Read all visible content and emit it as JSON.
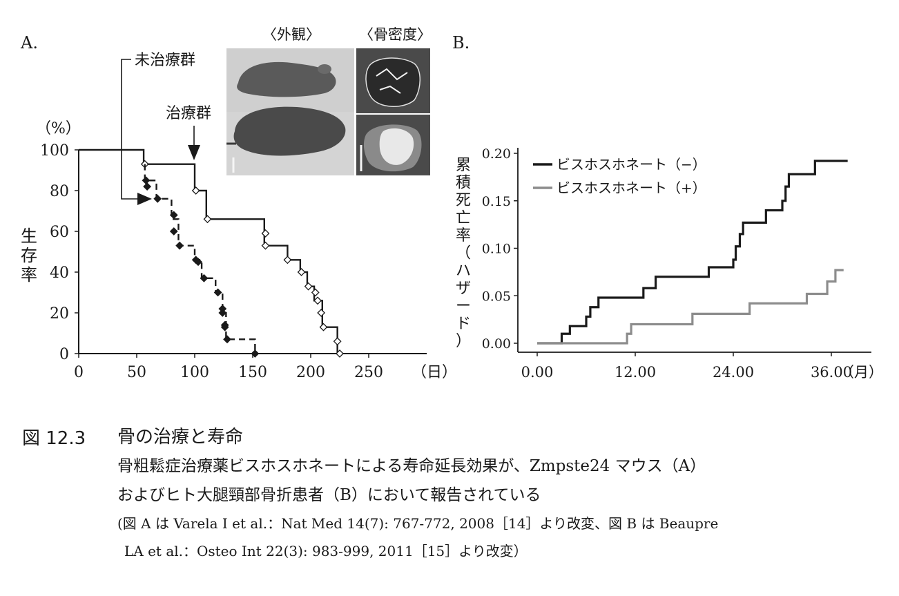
{
  "chart_data": [
    {
      "type": "line",
      "panel_label": "A.",
      "ylabel": "生存率",
      "y_unit": "（%）",
      "x_unit": "（日）",
      "xlim": [
        0,
        300
      ],
      "ylim": [
        0,
        100
      ],
      "x_ticks": [
        "0",
        "50",
        "100",
        "150",
        "200",
        "250"
      ],
      "y_ticks": [
        "0",
        "20",
        "40",
        "60",
        "80",
        "100"
      ],
      "annotations": {
        "untreated": "未治療群",
        "treated": "治療群"
      },
      "inset_labels": {
        "appearance": "〈外観〉",
        "bone_density": "〈骨密度〉"
      },
      "series": [
        {
          "name": "治療群",
          "style": "solid",
          "steps": [
            [
              0,
              100
            ],
            [
              56,
              100
            ],
            [
              56,
              93
            ],
            [
              100,
              93
            ],
            [
              100,
              80
            ],
            [
              110,
              80
            ],
            [
              110,
              66
            ],
            [
              160,
              66
            ],
            [
              160,
              53
            ],
            [
              180,
              53
            ],
            [
              180,
              46
            ],
            [
              191,
              46
            ],
            [
              191,
              40
            ],
            [
              197,
              40
            ],
            [
              197,
              33
            ],
            [
              203,
              33
            ],
            [
              203,
              26
            ],
            [
              210,
              26
            ],
            [
              210,
              13
            ],
            [
              223,
              13
            ],
            [
              223,
              0
            ],
            [
              225,
              0
            ]
          ],
          "markers": [
            [
              57,
              93
            ],
            [
              101,
              80
            ],
            [
              111,
              66
            ],
            [
              161,
              59
            ],
            [
              161,
              53
            ],
            [
              180,
              46
            ],
            [
              192,
              40
            ],
            [
              198,
              33
            ],
            [
              204,
              30
            ],
            [
              206,
              26
            ],
            [
              209,
              20
            ],
            [
              211,
              13
            ],
            [
              223,
              6
            ],
            [
              225,
              0
            ]
          ]
        },
        {
          "name": "未治療群",
          "style": "dashed",
          "steps": [
            [
              57,
              93
            ],
            [
              57,
              85
            ],
            [
              67,
              85
            ],
            [
              67,
              76
            ],
            [
              80,
              76
            ],
            [
              80,
              66
            ],
            [
              86,
              66
            ],
            [
              86,
              53
            ],
            [
              100,
              53
            ],
            [
              100,
              46
            ],
            [
              106,
              46
            ],
            [
              106,
              37
            ],
            [
              118,
              37
            ],
            [
              118,
              30
            ],
            [
              124,
              30
            ],
            [
              124,
              20
            ],
            [
              127,
              20
            ],
            [
              127,
              7
            ],
            [
              152,
              7
            ],
            [
              152,
              0
            ]
          ],
          "markers": [
            [
              58,
              85
            ],
            [
              59,
              82
            ],
            [
              68,
              76
            ],
            [
              82,
              68
            ],
            [
              82,
              60
            ],
            [
              87,
              53
            ],
            [
              101,
              46
            ],
            [
              103,
              45
            ],
            [
              108,
              37
            ],
            [
              120,
              30
            ],
            [
              124,
              22
            ],
            [
              124,
              20
            ],
            [
              126,
              14
            ],
            [
              126,
              13
            ],
            [
              128,
              7
            ],
            [
              152,
              0
            ]
          ]
        }
      ]
    },
    {
      "type": "line",
      "panel_label": "B.",
      "ylabel": "累積死亡率（ハザード）",
      "x_unit": "（月）",
      "xlim": [
        0,
        36
      ],
      "ylim": [
        0,
        0.2
      ],
      "x_ticks": [
        "0.00",
        "12.00",
        "24.00",
        "36.00"
      ],
      "y_ticks": [
        "0.00",
        "0.05",
        "0.10",
        "0.15",
        "0.20"
      ],
      "legend_position": "top-left",
      "series": [
        {
          "name": "ビスホスホネート（−）",
          "color": "#1a1a1a",
          "steps": [
            [
              0,
              0
            ],
            [
              3,
              0
            ],
            [
              3,
              0.01
            ],
            [
              4,
              0.01
            ],
            [
              4,
              0.018
            ],
            [
              6,
              0.018
            ],
            [
              6,
              0.028
            ],
            [
              6.5,
              0.028
            ],
            [
              6.5,
              0.038
            ],
            [
              7.5,
              0.038
            ],
            [
              7.5,
              0.048
            ],
            [
              13,
              0.048
            ],
            [
              13,
              0.058
            ],
            [
              14.5,
              0.058
            ],
            [
              14.5,
              0.07
            ],
            [
              21,
              0.07
            ],
            [
              21,
              0.08
            ],
            [
              24,
              0.08
            ],
            [
              24,
              0.088
            ],
            [
              24.3,
              0.088
            ],
            [
              24.3,
              0.102
            ],
            [
              24.8,
              0.102
            ],
            [
              24.8,
              0.115
            ],
            [
              25.2,
              0.115
            ],
            [
              25.2,
              0.127
            ],
            [
              28,
              0.127
            ],
            [
              28,
              0.14
            ],
            [
              30,
              0.14
            ],
            [
              30,
              0.15
            ],
            [
              30.4,
              0.15
            ],
            [
              30.4,
              0.165
            ],
            [
              30.8,
              0.165
            ],
            [
              30.8,
              0.178
            ],
            [
              34,
              0.178
            ],
            [
              34,
              0.192
            ],
            [
              38,
              0.192
            ]
          ]
        },
        {
          "name": "ビスホスホネート（+）",
          "color": "#8c8c8c",
          "steps": [
            [
              0,
              0
            ],
            [
              11,
              0
            ],
            [
              11,
              0.01
            ],
            [
              11.5,
              0.01
            ],
            [
              11.5,
              0.02
            ],
            [
              19,
              0.02
            ],
            [
              19,
              0.031
            ],
            [
              26,
              0.031
            ],
            [
              26,
              0.042
            ],
            [
              33,
              0.042
            ],
            [
              33,
              0.052
            ],
            [
              35.5,
              0.052
            ],
            [
              35.5,
              0.065
            ],
            [
              36.5,
              0.065
            ],
            [
              36.5,
              0.077
            ],
            [
              37.5,
              0.077
            ]
          ]
        }
      ]
    }
  ],
  "caption": {
    "figure_number": "図 12.3",
    "title": "骨の治療と寿命",
    "line1": "骨粗鬆症治療薬ビスホスホネートによる寿命延長効果が、Zmpste24 マウス（A）",
    "line2": "およびヒト大腿頸部骨折患者（B）において報告されている",
    "line3": "(図 A は Varela I et al.：Nat Med 14(7): 767-772, 2008［14］より改変、図 B は Beaupre",
    "line4": "LA et al.：Osteo Int 22(3): 983-999, 2011［15］より改変）"
  }
}
